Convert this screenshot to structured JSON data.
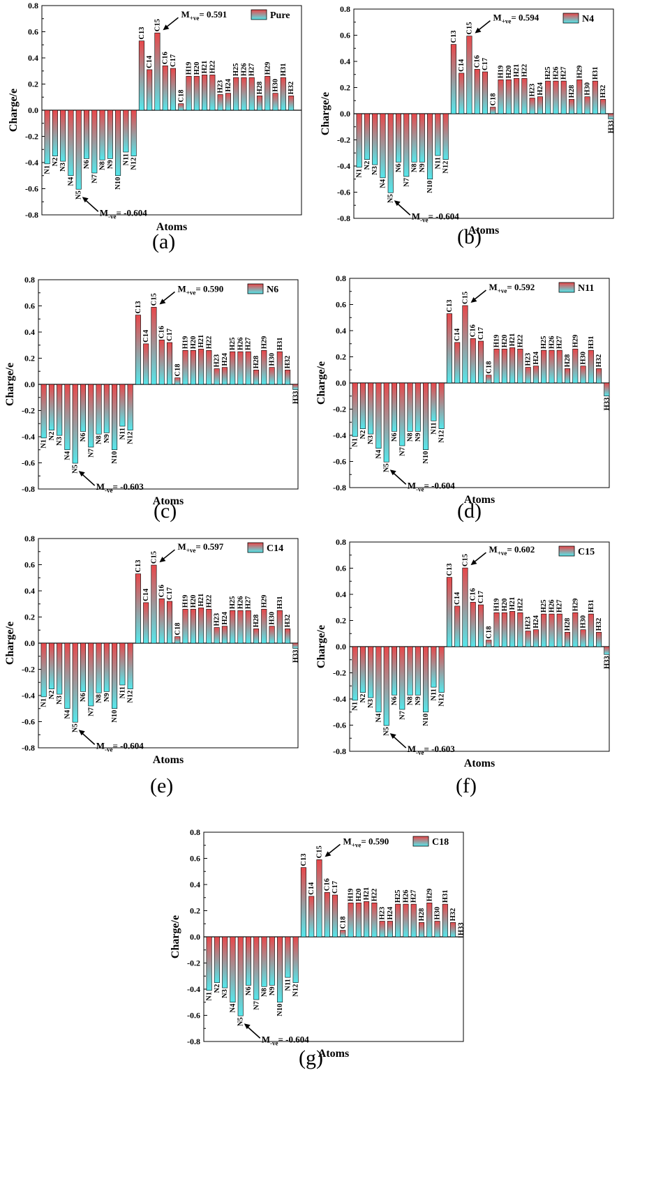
{
  "colors": {
    "bar_top": "#e8474a",
    "bar_bottom": "#55e8ec",
    "stroke": "#000000"
  },
  "panels": [
    {
      "caption": "(a)",
      "chart_data": {
        "type": "bar",
        "legend": "Pure",
        "xlabel": "Atoms",
        "ylabel": "Charge/e",
        "ylim": [
          -0.8,
          0.8
        ],
        "yticks": [
          "-0.8",
          "-0.6",
          "-0.4",
          "-0.2",
          "0.0",
          "0.2",
          "0.4",
          "0.6",
          "0.8"
        ],
        "categories": [
          "N1",
          "N2",
          "N3",
          "N4",
          "N5",
          "N6",
          "N7",
          "N8",
          "N9",
          "N10",
          "N11",
          "N12",
          "C13",
          "C14",
          "C15",
          "C16",
          "C17",
          "C18",
          "H19",
          "H20",
          "H21",
          "H22",
          "H23",
          "H24",
          "H25",
          "H26",
          "H27",
          "H28",
          "H29",
          "H30",
          "H31",
          "H32"
        ],
        "values": [
          -0.41,
          -0.35,
          -0.39,
          -0.5,
          -0.604,
          -0.37,
          -0.48,
          -0.38,
          -0.37,
          -0.5,
          -0.32,
          -0.35,
          0.53,
          0.31,
          0.591,
          0.34,
          0.32,
          0.05,
          0.26,
          0.26,
          0.27,
          0.27,
          0.12,
          0.13,
          0.25,
          0.25,
          0.25,
          0.11,
          0.26,
          0.13,
          0.25,
          0.11
        ],
        "annotation_max": "0.591",
        "annotation_min": "-0.604"
      }
    },
    {
      "caption": "(b)",
      "chart_data": {
        "type": "bar",
        "legend": "N4",
        "xlabel": "Atoms",
        "ylabel": "Charge/e",
        "ylim": [
          -0.8,
          0.8
        ],
        "yticks": [
          "-0.8",
          "-0.6",
          "-0.4",
          "-0.2",
          "0.0",
          "0.2",
          "0.4",
          "0.6",
          "0.8"
        ],
        "categories": [
          "N1",
          "N2",
          "N3",
          "N4",
          "N5",
          "N6",
          "N7",
          "N8",
          "N9",
          "N10",
          "N11",
          "N12",
          "C13",
          "C14",
          "C15",
          "C16",
          "C17",
          "C18",
          "H19",
          "H20",
          "H21",
          "H22",
          "H23",
          "H24",
          "H25",
          "H26",
          "H27",
          "H28",
          "H29",
          "H30",
          "H31",
          "H32",
          "H33"
        ],
        "values": [
          -0.41,
          -0.35,
          -0.39,
          -0.49,
          -0.604,
          -0.37,
          -0.48,
          -0.37,
          -0.37,
          -0.5,
          -0.32,
          -0.35,
          0.53,
          0.31,
          0.594,
          0.34,
          0.32,
          0.05,
          0.26,
          0.26,
          0.27,
          0.27,
          0.12,
          0.13,
          0.25,
          0.25,
          0.25,
          0.11,
          0.26,
          0.13,
          0.25,
          0.11,
          -0.04
        ],
        "annotation_max": "0.594",
        "annotation_min": "-0.604"
      }
    },
    {
      "caption": "(c)",
      "chart_data": {
        "type": "bar",
        "legend": "N6",
        "xlabel": "Atoms",
        "ylabel": "Charge/e",
        "ylim": [
          -0.8,
          0.8
        ],
        "yticks": [
          "-0.8",
          "-0.6",
          "-0.4",
          "-0.2",
          "0.0",
          "0.2",
          "0.4",
          "0.6",
          "0.8"
        ],
        "categories": [
          "N1",
          "N2",
          "N3",
          "N4",
          "N5",
          "N6",
          "N7",
          "N8",
          "N9",
          "N10",
          "N11",
          "N12",
          "C13",
          "C14",
          "C15",
          "C16",
          "C17",
          "C18",
          "H19",
          "H20",
          "H21",
          "H22",
          "H23",
          "H24",
          "H25",
          "H26",
          "H27",
          "H28",
          "H29",
          "H30",
          "H31",
          "H32",
          "H33"
        ],
        "values": [
          -0.41,
          -0.35,
          -0.39,
          -0.5,
          -0.603,
          -0.36,
          -0.48,
          -0.38,
          -0.37,
          -0.5,
          -0.32,
          -0.35,
          0.53,
          0.31,
          0.59,
          0.34,
          0.32,
          0.05,
          0.26,
          0.26,
          0.27,
          0.26,
          0.12,
          0.13,
          0.25,
          0.25,
          0.25,
          0.11,
          0.26,
          0.13,
          0.25,
          0.11,
          -0.04
        ],
        "annotation_max": "0.590",
        "annotation_min": "-0.603"
      }
    },
    {
      "caption": "(d)",
      "chart_data": {
        "type": "bar",
        "legend": "N11",
        "xlabel": "Atoms",
        "ylabel": "Charge/e",
        "ylim": [
          -0.8,
          0.8
        ],
        "yticks": [
          "-0.8",
          "-0.6",
          "-0.4",
          "-0.2",
          "0.0",
          "0.2",
          "0.4",
          "0.6",
          "0.8"
        ],
        "categories": [
          "N1",
          "N2",
          "N3",
          "N4",
          "N5",
          "N6",
          "N7",
          "N8",
          "N9",
          "N10",
          "N11",
          "N12",
          "C13",
          "C14",
          "C15",
          "C16",
          "C17",
          "C18",
          "H19",
          "H20",
          "H21",
          "H22",
          "H23",
          "H24",
          "H25",
          "H26",
          "H27",
          "H28",
          "H29",
          "H30",
          "H31",
          "H32",
          "H33"
        ],
        "values": [
          -0.41,
          -0.35,
          -0.39,
          -0.5,
          -0.604,
          -0.37,
          -0.48,
          -0.37,
          -0.37,
          -0.51,
          -0.29,
          -0.35,
          0.53,
          0.31,
          0.592,
          0.34,
          0.32,
          0.06,
          0.26,
          0.26,
          0.27,
          0.26,
          0.12,
          0.13,
          0.25,
          0.25,
          0.25,
          0.11,
          0.26,
          0.13,
          0.25,
          0.11,
          -0.1
        ],
        "annotation_max": "0.592",
        "annotation_min": "-0.604"
      }
    },
    {
      "caption": "(e)",
      "chart_data": {
        "type": "bar",
        "legend": "C14",
        "xlabel": "Atoms",
        "ylabel": "Charge/e",
        "ylim": [
          -0.8,
          0.8
        ],
        "yticks": [
          "-0.8",
          "-0.6",
          "-0.4",
          "-0.2",
          "0.0",
          "0.2",
          "0.4",
          "0.6",
          "0.8"
        ],
        "categories": [
          "N1",
          "N2",
          "N3",
          "N4",
          "N5",
          "N6",
          "N7",
          "N8",
          "N9",
          "N10",
          "N11",
          "N12",
          "C13",
          "C14",
          "C15",
          "C16",
          "C17",
          "C18",
          "H19",
          "H20",
          "H21",
          "H22",
          "H23",
          "H24",
          "H25",
          "H26",
          "H27",
          "H28",
          "H29",
          "H30",
          "H31",
          "H32",
          "H33"
        ],
        "values": [
          -0.41,
          -0.35,
          -0.39,
          -0.5,
          -0.604,
          -0.37,
          -0.48,
          -0.38,
          -0.37,
          -0.5,
          -0.32,
          -0.35,
          0.53,
          0.31,
          0.597,
          0.34,
          0.32,
          0.05,
          0.26,
          0.26,
          0.27,
          0.26,
          0.12,
          0.13,
          0.25,
          0.25,
          0.25,
          0.11,
          0.26,
          0.13,
          0.25,
          0.11,
          -0.04
        ],
        "annotation_max": "0.597",
        "annotation_min": "-0.604"
      }
    },
    {
      "caption": "(f)",
      "chart_data": {
        "type": "bar",
        "legend": "C15",
        "xlabel": "Atoms",
        "ylabel": "Charge/e",
        "ylim": [
          -0.8,
          0.8
        ],
        "yticks": [
          "-0.8",
          "-0.6",
          "-0.4",
          "-0.2",
          "0.0",
          "0.2",
          "0.4",
          "0.6",
          "0.8"
        ],
        "categories": [
          "N1",
          "N2",
          "N3",
          "N4",
          "N5",
          "N6",
          "N7",
          "N8",
          "N9",
          "N10",
          "N11",
          "N12",
          "C13",
          "C14",
          "C15",
          "C16",
          "C17",
          "C18",
          "H19",
          "H20",
          "H21",
          "H22",
          "H23",
          "H24",
          "H25",
          "H26",
          "H27",
          "H28",
          "H29",
          "H30",
          "H31",
          "H32",
          "H33"
        ],
        "values": [
          -0.41,
          -0.35,
          -0.39,
          -0.5,
          -0.603,
          -0.37,
          -0.48,
          -0.37,
          -0.37,
          -0.5,
          -0.31,
          -0.35,
          0.53,
          0.31,
          0.602,
          0.34,
          0.32,
          0.05,
          0.26,
          0.26,
          0.27,
          0.26,
          0.12,
          0.13,
          0.25,
          0.25,
          0.25,
          0.11,
          0.26,
          0.13,
          0.25,
          0.11,
          -0.06
        ],
        "annotation_max": "0.602",
        "annotation_min": "-0.603"
      }
    },
    {
      "caption": "(g)",
      "chart_data": {
        "type": "bar",
        "legend": "C18",
        "xlabel": "Atoms",
        "ylabel": "Charge/e",
        "ylim": [
          -0.8,
          0.8
        ],
        "yticks": [
          "-0.8",
          "-0.6",
          "-0.4",
          "-0.2",
          "0.0",
          "0.2",
          "0.4",
          "0.6",
          "0.8"
        ],
        "categories": [
          "N1",
          "N2",
          "N3",
          "N4",
          "N5",
          "N6",
          "N7",
          "N8",
          "N9",
          "N10",
          "N11",
          "N12",
          "C13",
          "C14",
          "C15",
          "C16",
          "C17",
          "C18",
          "H19",
          "H20",
          "H21",
          "H22",
          "H23",
          "H24",
          "H25",
          "H26",
          "H27",
          "H28",
          "H29",
          "H30",
          "H31",
          "H32",
          "H33"
        ],
        "values": [
          -0.41,
          -0.35,
          -0.39,
          -0.5,
          -0.604,
          -0.37,
          -0.48,
          -0.38,
          -0.37,
          -0.5,
          -0.31,
          -0.35,
          0.53,
          0.31,
          0.59,
          0.34,
          0.32,
          0.05,
          0.26,
          0.26,
          0.27,
          0.26,
          0.12,
          0.12,
          0.25,
          0.25,
          0.25,
          0.11,
          0.26,
          0.12,
          0.25,
          0.11,
          0.0
        ],
        "annotation_max": "0.590",
        "annotation_min": "-0.604"
      }
    }
  ]
}
